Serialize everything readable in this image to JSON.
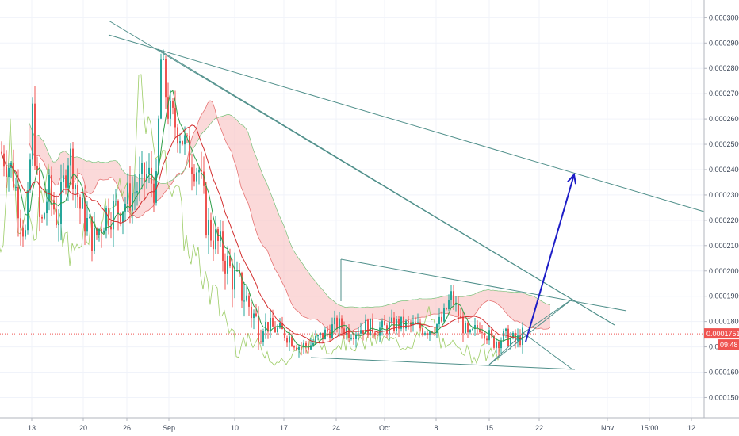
{
  "chart_data": {
    "type": "candlestick",
    "title": "",
    "xlabel": "",
    "ylabel": "",
    "ylim": [
      0.000142,
      0.000307
    ],
    "y_ticks": [
      "0.00015000",
      "0.00016000",
      "0.00017000",
      "0.00018000",
      "0.00019000",
      "0.00020000",
      "0.00021000",
      "0.00022000",
      "0.00023000",
      "0.00024000",
      "0.00025000",
      "0.00026000",
      "0.00027000",
      "0.00028000",
      "0.00029000",
      "0.00030000"
    ],
    "x_ticks": [
      "13",
      "20",
      "26",
      "Sep",
      "10",
      "17",
      "24",
      "Oct",
      "8",
      "15",
      "22",
      "Nov",
      "15:00",
      "12"
    ],
    "grid": true,
    "last_price": {
      "value": 0.00017516,
      "label": "0.00017516",
      "color": "#ef5350"
    },
    "countdown_label": "09:48",
    "colors": {
      "up": "#26a69a",
      "down": "#ef5350",
      "cloud": "#f7b9b9",
      "trendline": "#4f8f8a",
      "arrow": "#1d1dc7",
      "ma_red": "#d32f2f",
      "ma_green": "#2e9e48",
      "chikou": "#9ccc65"
    },
    "candles_summary": {
      "start_price": 0.000248,
      "peak_price": 0.000287,
      "end_price": 0.00017516,
      "range_low": 0.000163,
      "range_high": 0.000195
    },
    "annotations": [
      {
        "type": "trendline",
        "points": [
          [
            0.0,
            0.0003
          ],
          [
            1.0,
            0.000223
          ]
        ]
      },
      {
        "type": "trendline",
        "points": [
          [
            0.0,
            0.000295
          ],
          [
            1.0,
            0.000185
          ]
        ]
      },
      {
        "type": "arrow",
        "from": [
          0.000172
        ],
        "to": [
          0.000238
        ],
        "color": "#1d1dc7"
      }
    ]
  }
}
